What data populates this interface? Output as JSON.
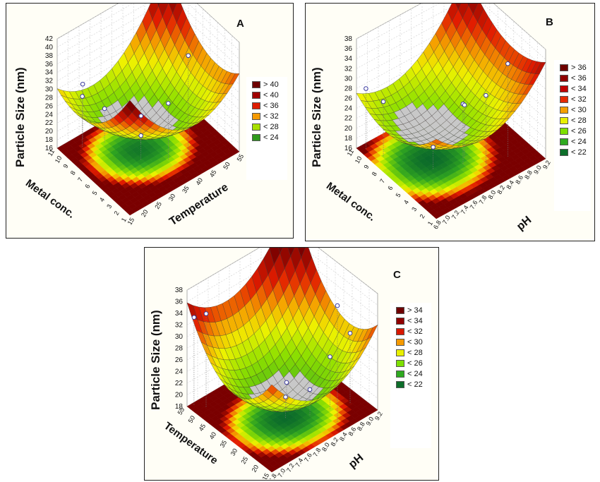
{
  "chart_data": [
    {
      "panel": "A",
      "type": "surface3d",
      "zlabel": "Particle Size (nm)",
      "xlabel": "Temperature",
      "ylabel": "Metal conc.",
      "x_ticks": [
        "15",
        "20",
        "25",
        "30",
        "35",
        "40",
        "45",
        "50",
        "55"
      ],
      "y_ticks": [
        "1",
        "2",
        "3",
        "4",
        "5",
        "6",
        "7",
        "8",
        "9",
        "10",
        "11"
      ],
      "z_ticks": [
        "16",
        "18",
        "20",
        "22",
        "24",
        "26",
        "28",
        "30",
        "32",
        "34",
        "36",
        "38",
        "40",
        "42"
      ],
      "zlim": [
        16,
        42
      ],
      "legend": [
        {
          "label": "> 40",
          "color": "#6e0000"
        },
        {
          "label": "< 40",
          "color": "#a00000"
        },
        {
          "label": "< 36",
          "color": "#dd1c00"
        },
        {
          "label": "< 32",
          "color": "#f59a00"
        },
        {
          "label": "< 28",
          "color": "#a8e000"
        },
        {
          "label": "< 24",
          "color": "#2f9a1c"
        }
      ]
    },
    {
      "panel": "B",
      "type": "surface3d",
      "zlabel": "Particle Size (nm)",
      "xlabel": "pH",
      "ylabel": "Metal conc.",
      "x_ticks": [
        "6.8",
        "7.0",
        "7.2",
        "7.4",
        "7.6",
        "7.8",
        "8.0",
        "8.2",
        "8.4",
        "8.6",
        "8.8",
        "9.0",
        "9.2"
      ],
      "y_ticks": [
        "1",
        "2",
        "3",
        "4",
        "5",
        "6",
        "7",
        "8",
        "9",
        "10",
        "11"
      ],
      "z_ticks": [
        "16",
        "18",
        "20",
        "22",
        "24",
        "26",
        "28",
        "30",
        "32",
        "34",
        "36",
        "38"
      ],
      "zlim": [
        16,
        38
      ],
      "legend": [
        {
          "label": "> 36",
          "color": "#6e0000"
        },
        {
          "label": "< 36",
          "color": "#900000"
        },
        {
          "label": "< 34",
          "color": "#c00000"
        },
        {
          "label": "< 32",
          "color": "#e52a00"
        },
        {
          "label": "< 30",
          "color": "#f5a000"
        },
        {
          "label": "< 28",
          "color": "#e8f000"
        },
        {
          "label": "< 26",
          "color": "#7ee000"
        },
        {
          "label": "< 24",
          "color": "#2faa20"
        },
        {
          "label": "< 22",
          "color": "#0d6e2a"
        }
      ]
    },
    {
      "panel": "C",
      "type": "surface3d",
      "zlabel": "Particle Size (nm)",
      "xlabel": "pH",
      "ylabel": "Temperature",
      "x_ticks": [
        "6.8",
        "7.0",
        "7.2",
        "7.4",
        "7.6",
        "7.8",
        "8.0",
        "8.2",
        "8.4",
        "8.6",
        "8.8",
        "9.0",
        "9.2"
      ],
      "y_ticks": [
        "15",
        "20",
        "25",
        "30",
        "35",
        "40",
        "45",
        "50",
        "55"
      ],
      "z_ticks": [
        "18",
        "20",
        "22",
        "24",
        "26",
        "28",
        "30",
        "32",
        "34",
        "36",
        "38"
      ],
      "zlim": [
        18,
        38
      ],
      "legend": [
        {
          "label": "> 34",
          "color": "#6e0000"
        },
        {
          "label": "< 34",
          "color": "#900000"
        },
        {
          "label": "< 32",
          "color": "#d81800"
        },
        {
          "label": "< 30",
          "color": "#f59a00"
        },
        {
          "label": "< 28",
          "color": "#e8f000"
        },
        {
          "label": "< 26",
          "color": "#7ee000"
        },
        {
          "label": "< 24",
          "color": "#2faa20"
        },
        {
          "label": "< 22",
          "color": "#0d6e2a"
        }
      ]
    }
  ]
}
